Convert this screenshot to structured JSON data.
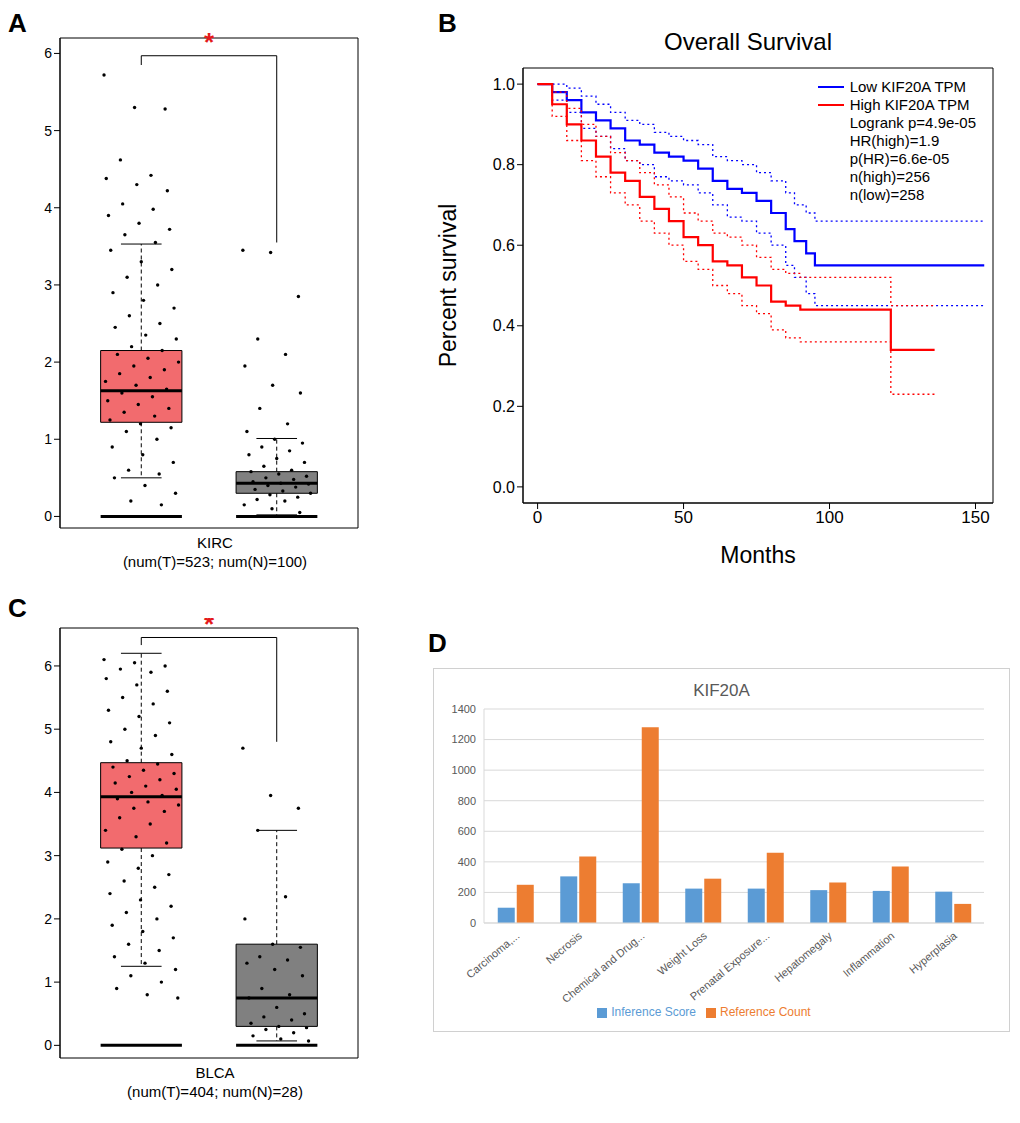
{
  "chart_data": [
    {
      "panel": "A",
      "type": "box",
      "xlabel": "KIRC",
      "counts_label": "(num(T)=523; num(N)=100)",
      "annotation": "*",
      "ylim": [
        -0.15,
        6.2
      ],
      "yticks": [
        0,
        1,
        2,
        3,
        4,
        5,
        6
      ],
      "baseline": 0,
      "groups": [
        {
          "color": "#f26b6e",
          "q1": 1.22,
          "median": 1.63,
          "q3": 2.15,
          "whisker_low": 0.5,
          "whisker_high": 3.53,
          "points": [
            5.72,
            5.3,
            5.28,
            4.62,
            4.42,
            4.38,
            4.3,
            4.22,
            4.05,
            3.98,
            3.9,
            3.8,
            3.72,
            3.65,
            3.55,
            3.45,
            3.3,
            3.2,
            3.1,
            3.0,
            2.9,
            2.8,
            2.7,
            2.6,
            2.5,
            2.45,
            2.35,
            2.3,
            2.2,
            2.15,
            2.1,
            2.05,
            2.0,
            1.95,
            1.9,
            1.85,
            1.8,
            1.75,
            1.7,
            1.65,
            1.6,
            1.55,
            1.5,
            1.45,
            1.4,
            1.35,
            1.3,
            1.25,
            1.2,
            1.15,
            1.1,
            1.0,
            0.9,
            0.8,
            0.7,
            0.6,
            0.55,
            0.5,
            0.4,
            0.3,
            0.2,
            0.15
          ]
        },
        {
          "color": "#808080",
          "q1": 0.3,
          "median": 0.43,
          "q3": 0.58,
          "whisker_low": 0.02,
          "whisker_high": 1.01,
          "points": [
            3.45,
            3.42,
            2.85,
            2.3,
            2.1,
            1.95,
            1.7,
            1.6,
            1.4,
            1.2,
            1.1,
            1.0,
            0.95,
            0.9,
            0.85,
            0.8,
            0.75,
            0.7,
            0.65,
            0.6,
            0.58,
            0.55,
            0.52,
            0.5,
            0.48,
            0.45,
            0.43,
            0.42,
            0.4,
            0.38,
            0.35,
            0.33,
            0.3,
            0.28,
            0.25,
            0.22,
            0.2,
            0.15,
            0.1,
            0.05
          ]
        }
      ]
    },
    {
      "panel": "B",
      "type": "line",
      "title": "Overall Survival",
      "xlabel": "Months",
      "ylabel": "Percent survival",
      "xlim": [
        -5,
        156
      ],
      "xticks": [
        0,
        50,
        100,
        150
      ],
      "ylim": [
        -0.04,
        1.04
      ],
      "yticks": [
        {
          "value": 0,
          "label": "0.0"
        },
        {
          "value": 0.2,
          "label": "0.2"
        },
        {
          "value": 0.4,
          "label": "0.4"
        },
        {
          "value": 0.6,
          "label": "0.6"
        },
        {
          "value": 0.8,
          "label": "0.8"
        },
        {
          "value": 1,
          "label": "1.0"
        }
      ],
      "legend": "upper right",
      "annotations": [
        "Logrank p=4.9e-05",
        "HR(high)=1.9",
        "p(HR)=6.6e-05",
        "n(high)=256",
        "n(low)=258"
      ],
      "series": [
        {
          "name": "Low KIF20A TPM",
          "color": "#0000ff",
          "line_style": "step",
          "x": [
            0,
            5,
            10,
            15,
            20,
            25,
            30,
            35,
            40,
            45,
            50,
            55,
            60,
            65,
            70,
            75,
            80,
            85,
            88,
            92,
            95,
            153
          ],
          "values": [
            1.0,
            0.98,
            0.96,
            0.93,
            0.91,
            0.89,
            0.86,
            0.85,
            0.83,
            0.82,
            0.81,
            0.79,
            0.76,
            0.74,
            0.73,
            0.71,
            0.68,
            0.64,
            0.61,
            0.58,
            0.55,
            0.55
          ],
          "ci_low": [
            1.0,
            0.96,
            0.93,
            0.89,
            0.87,
            0.84,
            0.81,
            0.8,
            0.77,
            0.76,
            0.75,
            0.73,
            0.7,
            0.67,
            0.66,
            0.63,
            0.6,
            0.55,
            0.52,
            0.48,
            0.45,
            0.45
          ],
          "ci_high": [
            1.0,
            1.0,
            0.99,
            0.97,
            0.95,
            0.93,
            0.91,
            0.9,
            0.88,
            0.87,
            0.86,
            0.85,
            0.82,
            0.81,
            0.8,
            0.78,
            0.76,
            0.73,
            0.7,
            0.68,
            0.66,
            0.66
          ]
        },
        {
          "name": "High KIF20A TPM",
          "color": "#ff0000",
          "line_style": "step",
          "x": [
            0,
            5,
            10,
            15,
            20,
            25,
            30,
            35,
            40,
            45,
            50,
            55,
            60,
            65,
            70,
            75,
            80,
            85,
            90,
            100,
            118,
            121,
            136
          ],
          "values": [
            1.0,
            0.95,
            0.9,
            0.86,
            0.82,
            0.78,
            0.76,
            0.72,
            0.69,
            0.66,
            0.62,
            0.6,
            0.56,
            0.55,
            0.52,
            0.5,
            0.46,
            0.45,
            0.44,
            0.44,
            0.44,
            0.34,
            0.34
          ],
          "ci_low": [
            1.0,
            0.92,
            0.86,
            0.81,
            0.77,
            0.73,
            0.7,
            0.66,
            0.63,
            0.6,
            0.56,
            0.54,
            0.5,
            0.48,
            0.45,
            0.43,
            0.39,
            0.37,
            0.36,
            0.36,
            0.36,
            0.23,
            0.23
          ],
          "ci_high": [
            1.0,
            0.98,
            0.94,
            0.9,
            0.87,
            0.83,
            0.81,
            0.78,
            0.75,
            0.72,
            0.68,
            0.66,
            0.63,
            0.62,
            0.6,
            0.57,
            0.54,
            0.53,
            0.52,
            0.52,
            0.52,
            0.45,
            0.45
          ]
        }
      ]
    },
    {
      "panel": "C",
      "type": "box",
      "xlabel": "BLCA",
      "counts_label": "(num(T)=404; num(N)=28)",
      "annotation": "*",
      "ylim": [
        -0.2,
        6.6
      ],
      "yticks": [
        0,
        1,
        2,
        3,
        4,
        5,
        6
      ],
      "baseline": 0,
      "groups": [
        {
          "color": "#f26b6e",
          "q1": 3.12,
          "median": 3.93,
          "q3": 4.47,
          "whisker_low": 1.25,
          "whisker_high": 6.2,
          "points": [
            6.1,
            6.05,
            6.0,
            5.95,
            5.9,
            5.8,
            5.7,
            5.6,
            5.5,
            5.4,
            5.3,
            5.2,
            5.1,
            5.0,
            4.9,
            4.8,
            4.7,
            4.6,
            4.5,
            4.45,
            4.4,
            4.35,
            4.3,
            4.25,
            4.2,
            4.15,
            4.1,
            4.05,
            4.0,
            3.95,
            3.9,
            3.85,
            3.8,
            3.75,
            3.7,
            3.6,
            3.5,
            3.4,
            3.3,
            3.2,
            3.1,
            3.0,
            2.9,
            2.8,
            2.7,
            2.6,
            2.5,
            2.4,
            2.3,
            2.2,
            2.1,
            2.0,
            1.9,
            1.8,
            1.7,
            1.6,
            1.5,
            1.4,
            1.3,
            1.2,
            1.1,
            1.0,
            0.9,
            0.8,
            0.75
          ]
        },
        {
          "color": "#808080",
          "q1": 0.3,
          "median": 0.75,
          "q3": 1.6,
          "whisker_low": 0.07,
          "whisker_high": 3.4,
          "points": [
            4.7,
            3.95,
            3.75,
            3.4,
            2.35,
            2.0,
            1.6,
            1.55,
            1.4,
            1.35,
            1.3,
            1.2,
            1.1,
            0.9,
            0.8,
            0.75,
            0.6,
            0.5,
            0.45,
            0.4,
            0.35,
            0.3,
            0.28,
            0.25,
            0.2,
            0.15,
            0.1,
            0.07
          ]
        }
      ]
    },
    {
      "panel": "D",
      "type": "bar",
      "title": "KIF20A",
      "categories": [
        "Carcinoma,...",
        "Necrosis",
        "Chemical and Drug...",
        "Weight Loss",
        "Prenatal Exposure...",
        "Hepatomegaly",
        "Inflammation",
        "Hyperplasia"
      ],
      "series": [
        {
          "name": "Inference Score",
          "color": "#5b9bd5",
          "values": [
            100,
            305,
            260,
            225,
            225,
            215,
            210,
            205
          ]
        },
        {
          "name": "Reference Count",
          "color": "#ed7d31",
          "values": [
            250,
            435,
            1280,
            290,
            460,
            265,
            370,
            125
          ]
        }
      ],
      "ylim": [
        0,
        1400
      ],
      "yticks": [
        0,
        200,
        400,
        600,
        800,
        1000,
        1200,
        1400
      ],
      "grid": true,
      "legend": "bottom"
    }
  ]
}
